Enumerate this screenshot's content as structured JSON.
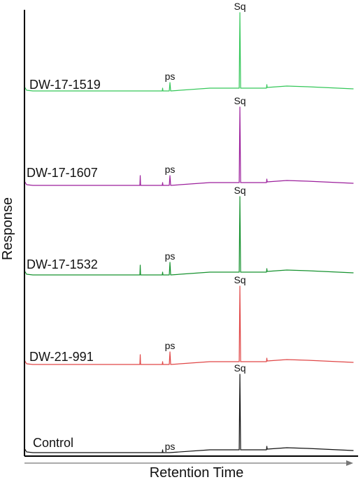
{
  "chart_data": {
    "type": "line",
    "title": "",
    "xlabel": "Retention Time",
    "ylabel": "Response",
    "x_ticks_shown": false,
    "y_ticks_shown": false,
    "grid": false,
    "legend": "none",
    "stacked_offset_traces": true,
    "series": [
      {
        "name": "DW-17-1519",
        "color": "#34c759",
        "peaks": [
          {
            "label": "ps",
            "relative_height": 0.06
          },
          {
            "label": "Sq",
            "relative_height": 1.0
          }
        ]
      },
      {
        "name": "DW-17-1607",
        "color": "#9c1f9c",
        "peaks": [
          {
            "label": "ps",
            "relative_height": 0.07
          },
          {
            "label": "Sq",
            "relative_height": 1.0
          }
        ]
      },
      {
        "name": "DW-17-1532",
        "color": "#16922f",
        "peaks": [
          {
            "label": "ps",
            "relative_height": 0.09
          },
          {
            "label": "Sq",
            "relative_height": 1.0
          }
        ]
      },
      {
        "name": "DW-21-991",
        "color": "#e04646",
        "peaks": [
          {
            "label": "ps",
            "relative_height": 0.09
          },
          {
            "label": "Sq",
            "relative_height": 1.0
          }
        ]
      },
      {
        "name": "Control",
        "color": "#111111",
        "peaks": [
          {
            "label": "ps",
            "relative_height": 0.0
          },
          {
            "label": "Sq",
            "relative_height": 1.0
          }
        ]
      }
    ]
  }
}
